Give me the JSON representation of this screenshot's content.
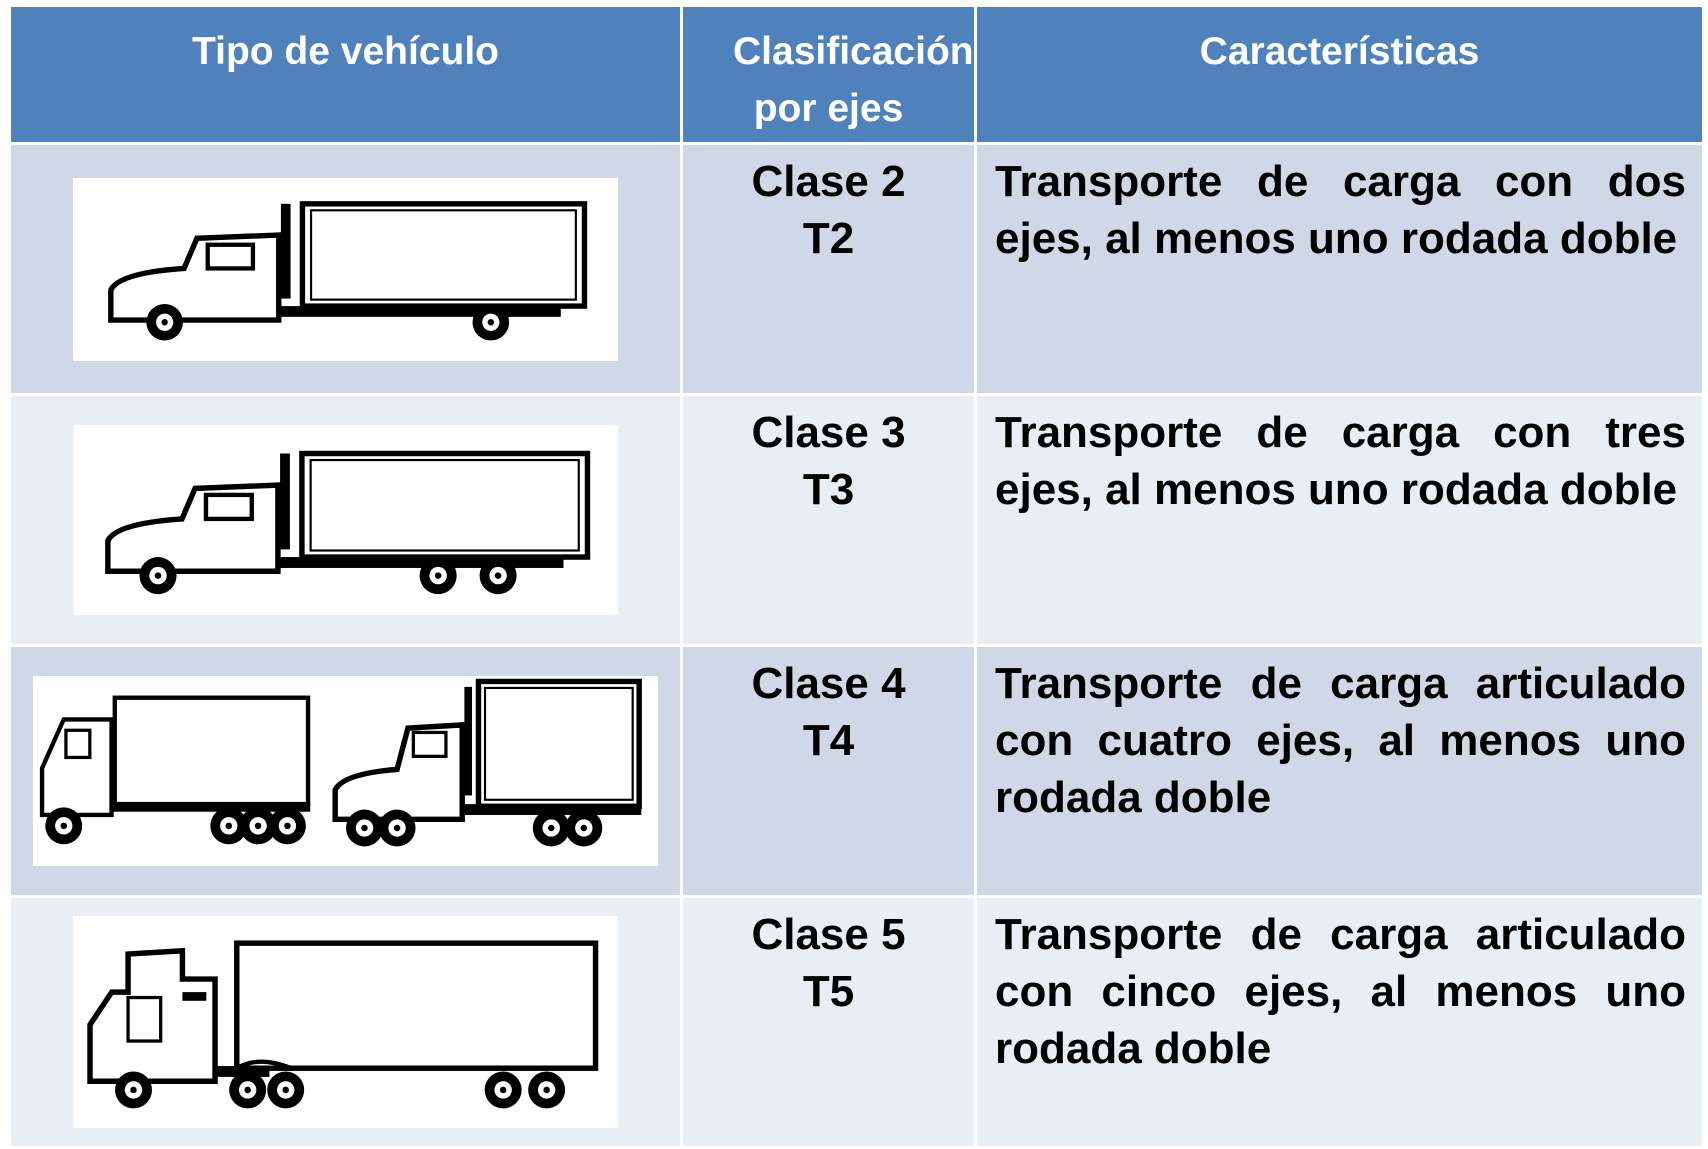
{
  "table": {
    "header": [
      "Tipo de vehículo",
      "Clasificación por ejes",
      "Características"
    ],
    "rows": [
      {
        "class": "Clase 2",
        "code": "T2",
        "description": "Transporte de carga con dos ejes, al menos uno rodada doble"
      },
      {
        "class": "Clase 3",
        "code": "T3",
        "description": "Transporte de carga con tres ejes, al menos uno rodada doble"
      },
      {
        "class": "Clase 4",
        "code": "T4",
        "description": "Transporte de carga articulado con cuatro ejes, al menos uno rodada doble"
      },
      {
        "class": "Clase 5",
        "code": "T5",
        "description": "Transporte de carga articulado con cinco ejes, al menos uno rodada doble"
      }
    ]
  }
}
